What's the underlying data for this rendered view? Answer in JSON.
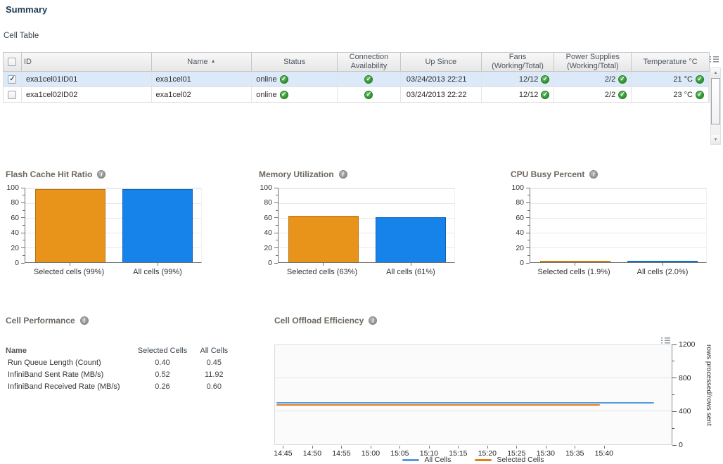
{
  "page": {
    "title": "Summary",
    "table_label": "Cell Table"
  },
  "cell_table": {
    "columns": [
      "ID",
      "Name",
      "Status",
      "Connection Availability",
      "Up Since",
      "Fans (Working/Total)",
      "Power Supplies (Working/Total)",
      "Temperature °C"
    ],
    "sort_column": "Name",
    "sort_direction": "ascending",
    "rows": [
      {
        "id": "exa1cel01ID01",
        "name": "exa1cel01",
        "status": "online",
        "up_since": "03/24/2013 22:21",
        "fans": "12/12",
        "power_supplies": "2/2",
        "temperature": "21 °C",
        "checked": true,
        "selected": true
      },
      {
        "id": "exa1cel02ID02",
        "name": "exa1cel02",
        "status": "online",
        "up_since": "03/24/2013 22:22",
        "fans": "12/12",
        "power_supplies": "2/2",
        "temperature": "23 °C",
        "checked": false,
        "selected": false
      }
    ],
    "status_ok_color": "#2E9132"
  },
  "cell_performance": {
    "title": "Cell Performance",
    "columns": [
      "Name",
      "Selected Cells",
      "All Cells"
    ],
    "rows": [
      {
        "name": "Run Queue Length (Count)",
        "selected": "0.40",
        "all": "0.45"
      },
      {
        "name": "InfiniBand Sent Rate (MB/s)",
        "selected": "0.52",
        "all": "11.92"
      },
      {
        "name": "InfiniBand Received Rate (MB/s)",
        "selected": "0.26",
        "all": "0.60"
      }
    ]
  },
  "chart_data": [
    {
      "type": "bar",
      "title": "Flash Cache Hit Ratio",
      "categories": [
        "Selected cells (99%)",
        "All cells (99%)"
      ],
      "values": [
        99,
        99
      ],
      "ylim": [
        0,
        100
      ],
      "ytick_step": 20,
      "grid": true,
      "bar_colors": [
        "#E8941A",
        "#1583E9"
      ],
      "bar_borders": [
        "#B87310",
        "#0E62B4"
      ]
    },
    {
      "type": "bar",
      "title": "Memory Utilization",
      "categories": [
        "Selected cells (63%)",
        "All cells (61%)"
      ],
      "values": [
        63,
        61
      ],
      "ylim": [
        0,
        100
      ],
      "ytick_step": 20,
      "grid": true,
      "bar_colors": [
        "#E8941A",
        "#1583E9"
      ],
      "bar_borders": [
        "#B87310",
        "#0E62B4"
      ]
    },
    {
      "type": "bar",
      "title": "CPU Busy Percent",
      "categories": [
        "Selected cells (1.9%)",
        "All cells (2.0%)"
      ],
      "values": [
        1.9,
        2.0
      ],
      "ylim": [
        0,
        100
      ],
      "ytick_step": 20,
      "grid": true,
      "bar_colors": [
        "#E8941A",
        "#1583E9"
      ],
      "bar_borders": [
        "#B87310",
        "#0E62B4"
      ]
    },
    {
      "type": "line",
      "title": "Cell Offload Efficiency",
      "ylabel": "rows processed/rows sent",
      "ylim": [
        0,
        1200
      ],
      "ytick_major": 400,
      "ytick_minor": 200,
      "grid": true,
      "legend_position": "bottom",
      "yaxis_position": "right",
      "x_ticks": [
        "14:45",
        "14:50",
        "14:55",
        "15:00",
        "15:05",
        "15:10",
        "15:15",
        "15:20",
        "15:25",
        "15:30",
        "15:35",
        "15:40"
      ],
      "series": [
        {
          "name": "All Cells",
          "color": "#559BDB",
          "value": 500,
          "start_frac": 0.004,
          "end_frac": 0.955
        },
        {
          "name": "Selected Cells",
          "color": "#E2801F",
          "value": 478,
          "start_frac": 0.004,
          "end_frac": 0.82
        }
      ]
    }
  ]
}
